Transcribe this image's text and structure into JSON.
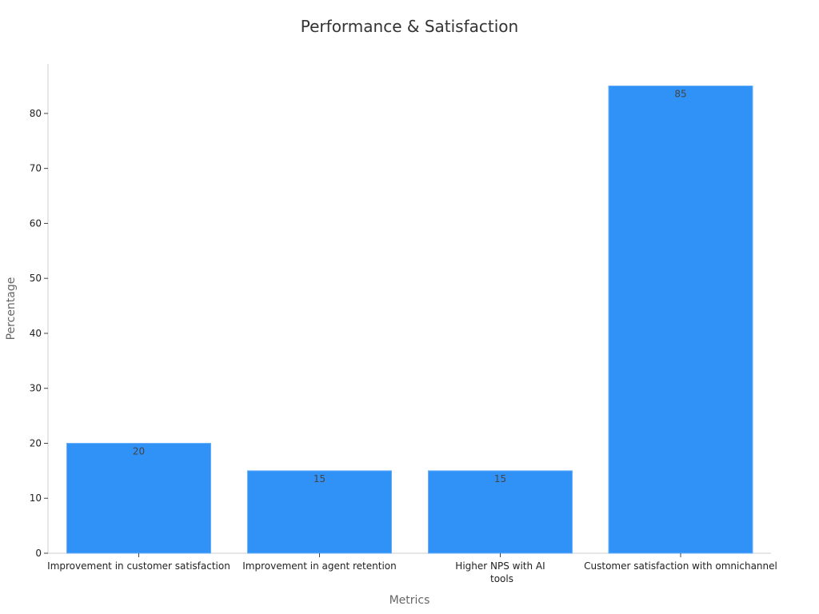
{
  "chart_data": {
    "type": "bar",
    "title": "Performance & Satisfaction",
    "xlabel": "Metrics",
    "ylabel": "Percentage",
    "categories": [
      [
        "Improvement in customer satisfaction"
      ],
      [
        "Improvement in agent retention"
      ],
      [
        "Higher NPS with AI",
        "tools"
      ],
      [
        "Customer satisfaction with omnichannel"
      ]
    ],
    "values": [
      20,
      15,
      15,
      85
    ],
    "ylim": [
      0,
      89
    ],
    "yticks": [
      0,
      10,
      20,
      30,
      40,
      50,
      60,
      70,
      80
    ],
    "bar_color": "#3092f7",
    "grid": false,
    "legend": "none"
  }
}
